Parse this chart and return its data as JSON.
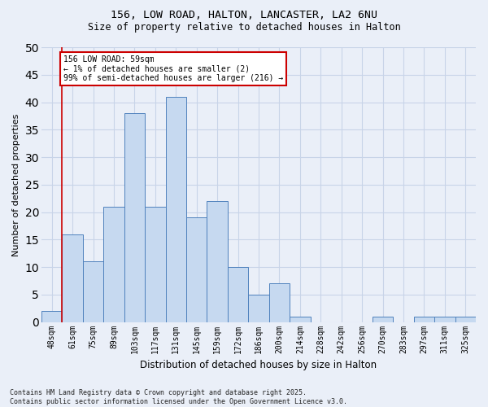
{
  "title_line1": "156, LOW ROAD, HALTON, LANCASTER, LA2 6NU",
  "title_line2": "Size of property relative to detached houses in Halton",
  "xlabel": "Distribution of detached houses by size in Halton",
  "ylabel": "Number of detached properties",
  "categories": [
    "48sqm",
    "61sqm",
    "75sqm",
    "89sqm",
    "103sqm",
    "117sqm",
    "131sqm",
    "145sqm",
    "159sqm",
    "172sqm",
    "186sqm",
    "200sqm",
    "214sqm",
    "228sqm",
    "242sqm",
    "256sqm",
    "270sqm",
    "283sqm",
    "297sqm",
    "311sqm",
    "325sqm"
  ],
  "values": [
    2,
    16,
    11,
    21,
    38,
    21,
    41,
    19,
    22,
    10,
    5,
    7,
    1,
    0,
    0,
    0,
    1,
    0,
    1,
    1,
    1
  ],
  "bar_color": "#c6d9f0",
  "bar_edge_color": "#4f81bd",
  "ylim": [
    0,
    50
  ],
  "yticks": [
    0,
    5,
    10,
    15,
    20,
    25,
    30,
    35,
    40,
    45,
    50
  ],
  "grid_color": "#c8d4e8",
  "background_color": "#eaeff8",
  "annotation_text": "156 LOW ROAD: 59sqm\n← 1% of detached houses are smaller (2)\n99% of semi-detached houses are larger (216) →",
  "annotation_box_facecolor": "#ffffff",
  "annotation_box_edgecolor": "#cc0000",
  "footer_text": "Contains HM Land Registry data © Crown copyright and database right 2025.\nContains public sector information licensed under the Open Government Licence v3.0.",
  "vline_color": "#cc0000",
  "vline_x": 0.5
}
